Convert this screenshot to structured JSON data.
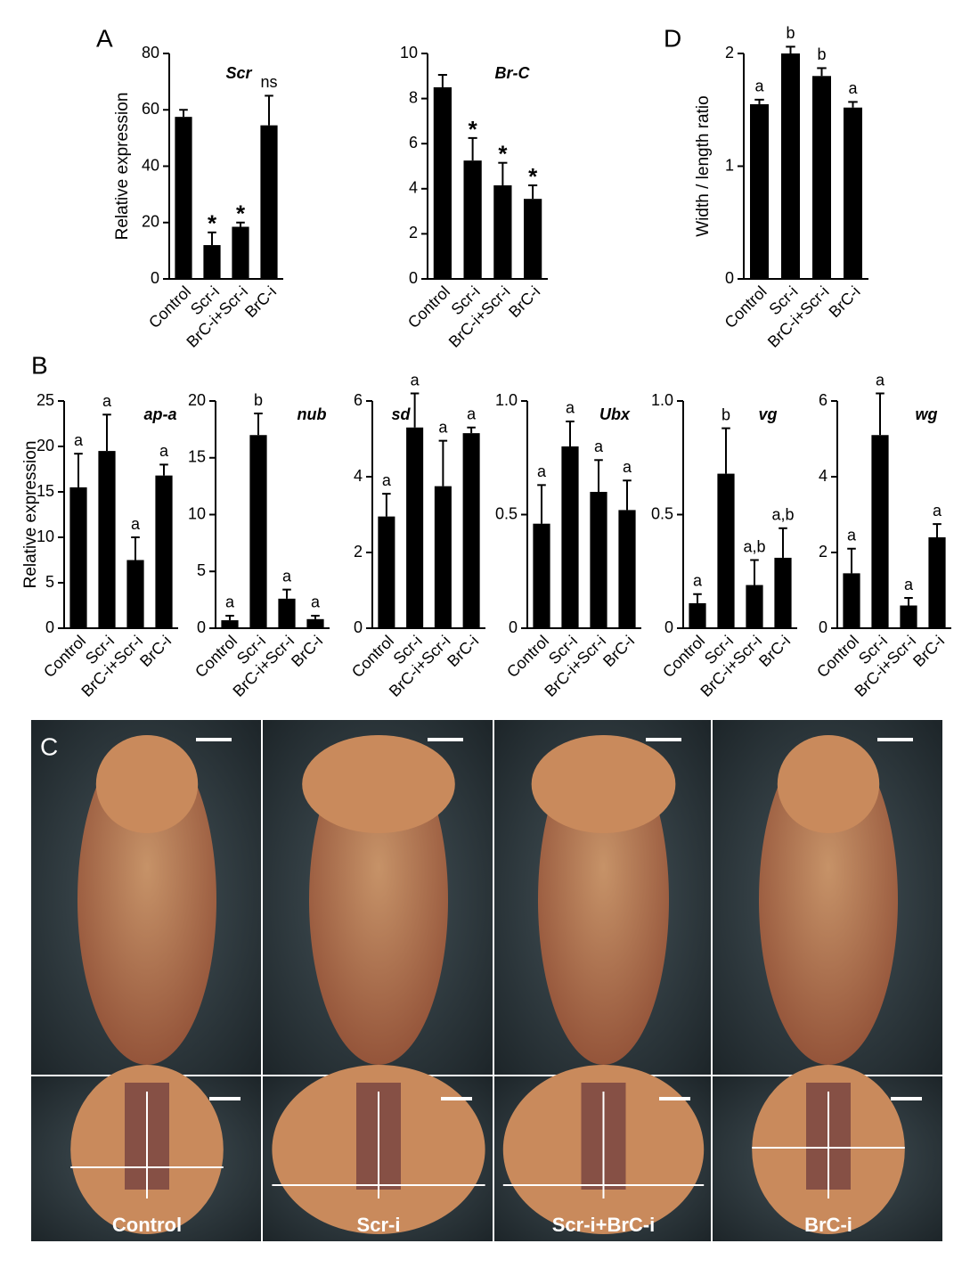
{
  "chart_data": [
    {
      "type": "bar",
      "panel": "A",
      "title": "Scr",
      "ylabel": "Relative expression",
      "categories": [
        "Control",
        "Scr-i",
        "BrC-i+Scr-i",
        "BrC-i"
      ],
      "values": [
        57.5,
        12,
        18.5,
        54.5
      ],
      "errors": [
        2.5,
        4.5,
        1.5,
        10.5
      ],
      "annotations": [
        null,
        "*",
        "*",
        "ns"
      ],
      "ylim": [
        0,
        80
      ],
      "yticks": [
        0,
        20,
        40,
        60,
        80
      ],
      "color": "#000000"
    },
    {
      "type": "bar",
      "title": "Br-C",
      "categories": [
        "Control",
        "Scr-i",
        "BrC-i+Scr-i",
        "BrC-i"
      ],
      "values": [
        8.5,
        5.25,
        4.15,
        3.55
      ],
      "errors": [
        0.55,
        1.0,
        1.0,
        0.6
      ],
      "annotations": [
        null,
        "*",
        "*",
        "*"
      ],
      "ylim": [
        0,
        10
      ],
      "yticks": [
        0,
        2,
        4,
        6,
        8,
        10
      ],
      "color": "#000000"
    },
    {
      "type": "bar",
      "panel": "D",
      "ylabel": "Width / length ratio",
      "categories": [
        "Control",
        "Scr-i",
        "BrC-i+Scr-i",
        "BrC-i"
      ],
      "values": [
        1.55,
        2.0,
        1.8,
        1.52
      ],
      "errors": [
        0.04,
        0.06,
        0.07,
        0.05
      ],
      "annotations": [
        "a",
        "b",
        "b",
        "a"
      ],
      "ylim": [
        0,
        2
      ],
      "yticks": [
        0,
        1,
        2
      ],
      "color": "#000000"
    },
    {
      "type": "bar",
      "panel": "B",
      "title": "ap-a",
      "ylabel": "Relative expression",
      "categories": [
        "Control",
        "Scr-i",
        "BrC-i+Scr-i",
        "BrC-i"
      ],
      "values": [
        15.5,
        19.5,
        7.5,
        16.8
      ],
      "errors": [
        3.7,
        4,
        2.5,
        1.2
      ],
      "annotations": [
        "a",
        "a",
        "a",
        "a"
      ],
      "ylim": [
        0,
        25
      ],
      "yticks": [
        0,
        5,
        10,
        15,
        20,
        25
      ],
      "color": "#000000"
    },
    {
      "type": "bar",
      "title": "nub",
      "categories": [
        "Control",
        "Scr-i",
        "BrC-i+Scr-i",
        "BrC-i"
      ],
      "values": [
        0.7,
        17,
        2.6,
        0.8
      ],
      "errors": [
        0.4,
        1.9,
        0.8,
        0.3
      ],
      "annotations": [
        "a",
        "b",
        "a",
        "a"
      ],
      "ylim": [
        0,
        20
      ],
      "yticks": [
        0,
        5,
        10,
        15,
        20
      ],
      "color": "#000000"
    },
    {
      "type": "bar",
      "title": "sd",
      "categories": [
        "Control",
        "Scr-i",
        "BrC-i+Scr-i",
        "BrC-i"
      ],
      "values": [
        2.95,
        5.3,
        3.75,
        5.15
      ],
      "errors": [
        0.6,
        0.9,
        1.2,
        0.15
      ],
      "annotations": [
        "a",
        "a",
        "a",
        "a"
      ],
      "ylim": [
        0,
        6
      ],
      "yticks": [
        0,
        2,
        4,
        6
      ],
      "color": "#000000"
    },
    {
      "type": "bar",
      "title": "Ubx",
      "categories": [
        "Control",
        "Scr-i",
        "BrC-i+Scr-i",
        "BrC-i"
      ],
      "values": [
        0.46,
        0.8,
        0.6,
        0.52
      ],
      "errors": [
        0.17,
        0.11,
        0.14,
        0.13
      ],
      "annotations": [
        "a",
        "a",
        "a",
        "a"
      ],
      "ylim": [
        0,
        1
      ],
      "yticks": [
        0,
        0.5,
        {
          "value": 1,
          "label": "1.0"
        }
      ],
      "color": "#000000"
    },
    {
      "type": "bar",
      "title": "vg",
      "categories": [
        "Control",
        "Scr-i",
        "BrC-i+Scr-i",
        "BrC-i"
      ],
      "values": [
        0.11,
        0.68,
        0.19,
        0.31
      ],
      "errors": [
        0.04,
        0.2,
        0.11,
        0.13
      ],
      "annotations": [
        "a",
        "b",
        "a,b",
        "a,b"
      ],
      "ylim": [
        0,
        1
      ],
      "yticks": [
        0,
        0.5,
        {
          "value": 1,
          "label": "1.0"
        }
      ],
      "color": "#000000"
    },
    {
      "type": "bar",
      "title": "wg",
      "categories": [
        "Control",
        "Scr-i",
        "BrC-i+Scr-i",
        "BrC-i"
      ],
      "values": [
        1.45,
        5.1,
        0.6,
        2.4
      ],
      "errors": [
        0.65,
        1.1,
        0.2,
        0.35
      ],
      "annotations": [
        "a",
        "a",
        "a",
        "a"
      ],
      "ylim": [
        0,
        6
      ],
      "yticks": [
        0,
        2,
        4,
        6
      ],
      "color": "#000000"
    }
  ],
  "panel_c": {
    "panel": "C",
    "labels": [
      "Control",
      "Scr-i",
      "Scr-i+BrC-i",
      "BrC-i"
    ]
  }
}
